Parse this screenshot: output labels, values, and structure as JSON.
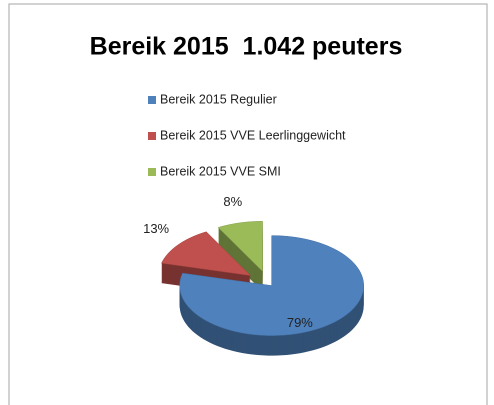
{
  "chart_data": {
    "type": "pie",
    "title": "Bereik 2015  1.042 peuters",
    "categories": [
      "Bereik 2015 Regulier",
      "Bereik 2015 VVE Leerlinggewicht",
      "Bereik 2015 VVE SMI"
    ],
    "values": [
      79,
      13,
      8
    ],
    "value_labels": [
      "79%",
      "13%",
      "8%"
    ],
    "colors": [
      "#4f81bd",
      "#c0504d",
      "#9bbb59"
    ],
    "legend": "top"
  }
}
